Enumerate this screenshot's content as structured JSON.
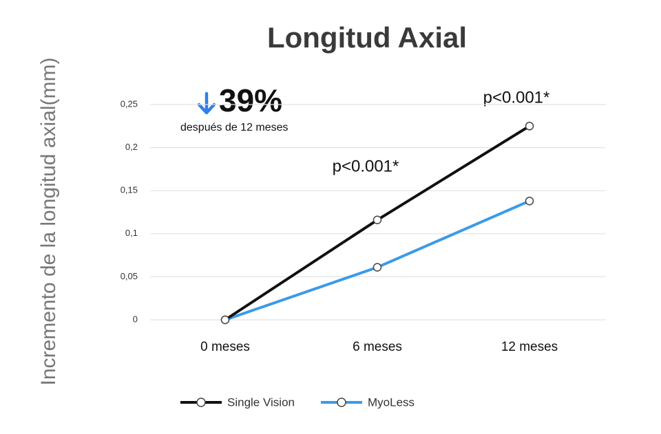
{
  "chart_data": {
    "type": "line",
    "title": "Longitud Axial",
    "y_label": "Incremento de la longitud axial(mm)",
    "categories": [
      "0 meses",
      "6 meses",
      "12 meses"
    ],
    "series": [
      {
        "name": "Single Vision",
        "color": "#111111",
        "values": [
          0,
          0.116,
          0.225
        ]
      },
      {
        "name": "MyoLess",
        "color": "#3b9be8",
        "values": [
          0,
          0.061,
          0.138
        ]
      }
    ],
    "ylim": [
      0,
      0.25
    ],
    "yticks": [
      0,
      {
        "value": 0.05,
        "label": "0,05"
      },
      {
        "value": 0.1,
        "label": "0,1"
      },
      {
        "value": 0.15,
        "label": "0,15"
      },
      {
        "value": 0.2,
        "label": "0,2"
      },
      {
        "value": 0.25,
        "label": "0,25"
      }
    ],
    "grid": true,
    "legend": "bottom",
    "annotations": [
      "39%",
      "después de 12 meses",
      "p<0.001*",
      "p<0.001*"
    ]
  }
}
